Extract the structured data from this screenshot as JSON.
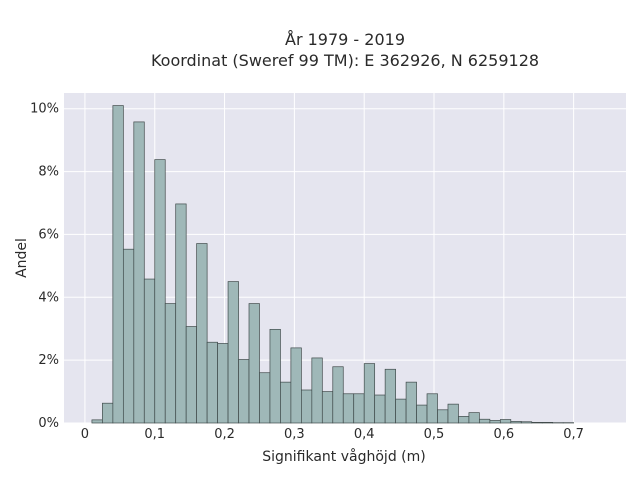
{
  "chart_data": {
    "type": "bar",
    "title": "År 1979 - 2019",
    "subtitle": "Koordinat (Sweref 99 TM): E 362926, N 6259128",
    "xlabel": "Signifikant våghöjd (m)",
    "ylabel": "Andel",
    "xlim": [
      -0.03,
      0.775
    ],
    "ylim": [
      0,
      10.5
    ],
    "x_ticks": [
      0,
      0.1,
      0.2,
      0.3,
      0.4,
      0.5,
      0.6,
      0.7
    ],
    "x_tick_labels": [
      "0",
      "0,1",
      "0,2",
      "0,3",
      "0,4",
      "0,5",
      "0,6",
      "0,7"
    ],
    "y_ticks": [
      0,
      2,
      4,
      6,
      8,
      10
    ],
    "y_tick_labels": [
      "0%",
      "2%",
      "4%",
      "6%",
      "8%",
      "10%"
    ],
    "bin_width": 0.015,
    "bin_start": 0.01,
    "values": [
      0.1,
      0.63,
      10.1,
      5.53,
      9.58,
      4.58,
      8.38,
      3.8,
      6.97,
      3.07,
      5.71,
      2.57,
      2.53,
      4.5,
      2.02,
      3.8,
      1.6,
      2.98,
      1.3,
      2.39,
      1.05,
      2.07,
      1.0,
      1.79,
      0.93,
      0.93,
      1.89,
      0.89,
      1.71,
      0.76,
      1.3,
      0.57,
      0.93,
      0.42,
      0.6,
      0.21,
      0.33,
      0.12,
      0.08,
      0.11,
      0.05,
      0.04,
      0.02,
      0.02,
      0.01,
      0.01
    ],
    "grid": true,
    "colors": {
      "bar_fill": "#9fb8b8",
      "bar_edge": "#3f4a4a",
      "plot_bg": "#e5e5ef",
      "grid": "#ffffff",
      "text": "#2a2a2a"
    }
  }
}
